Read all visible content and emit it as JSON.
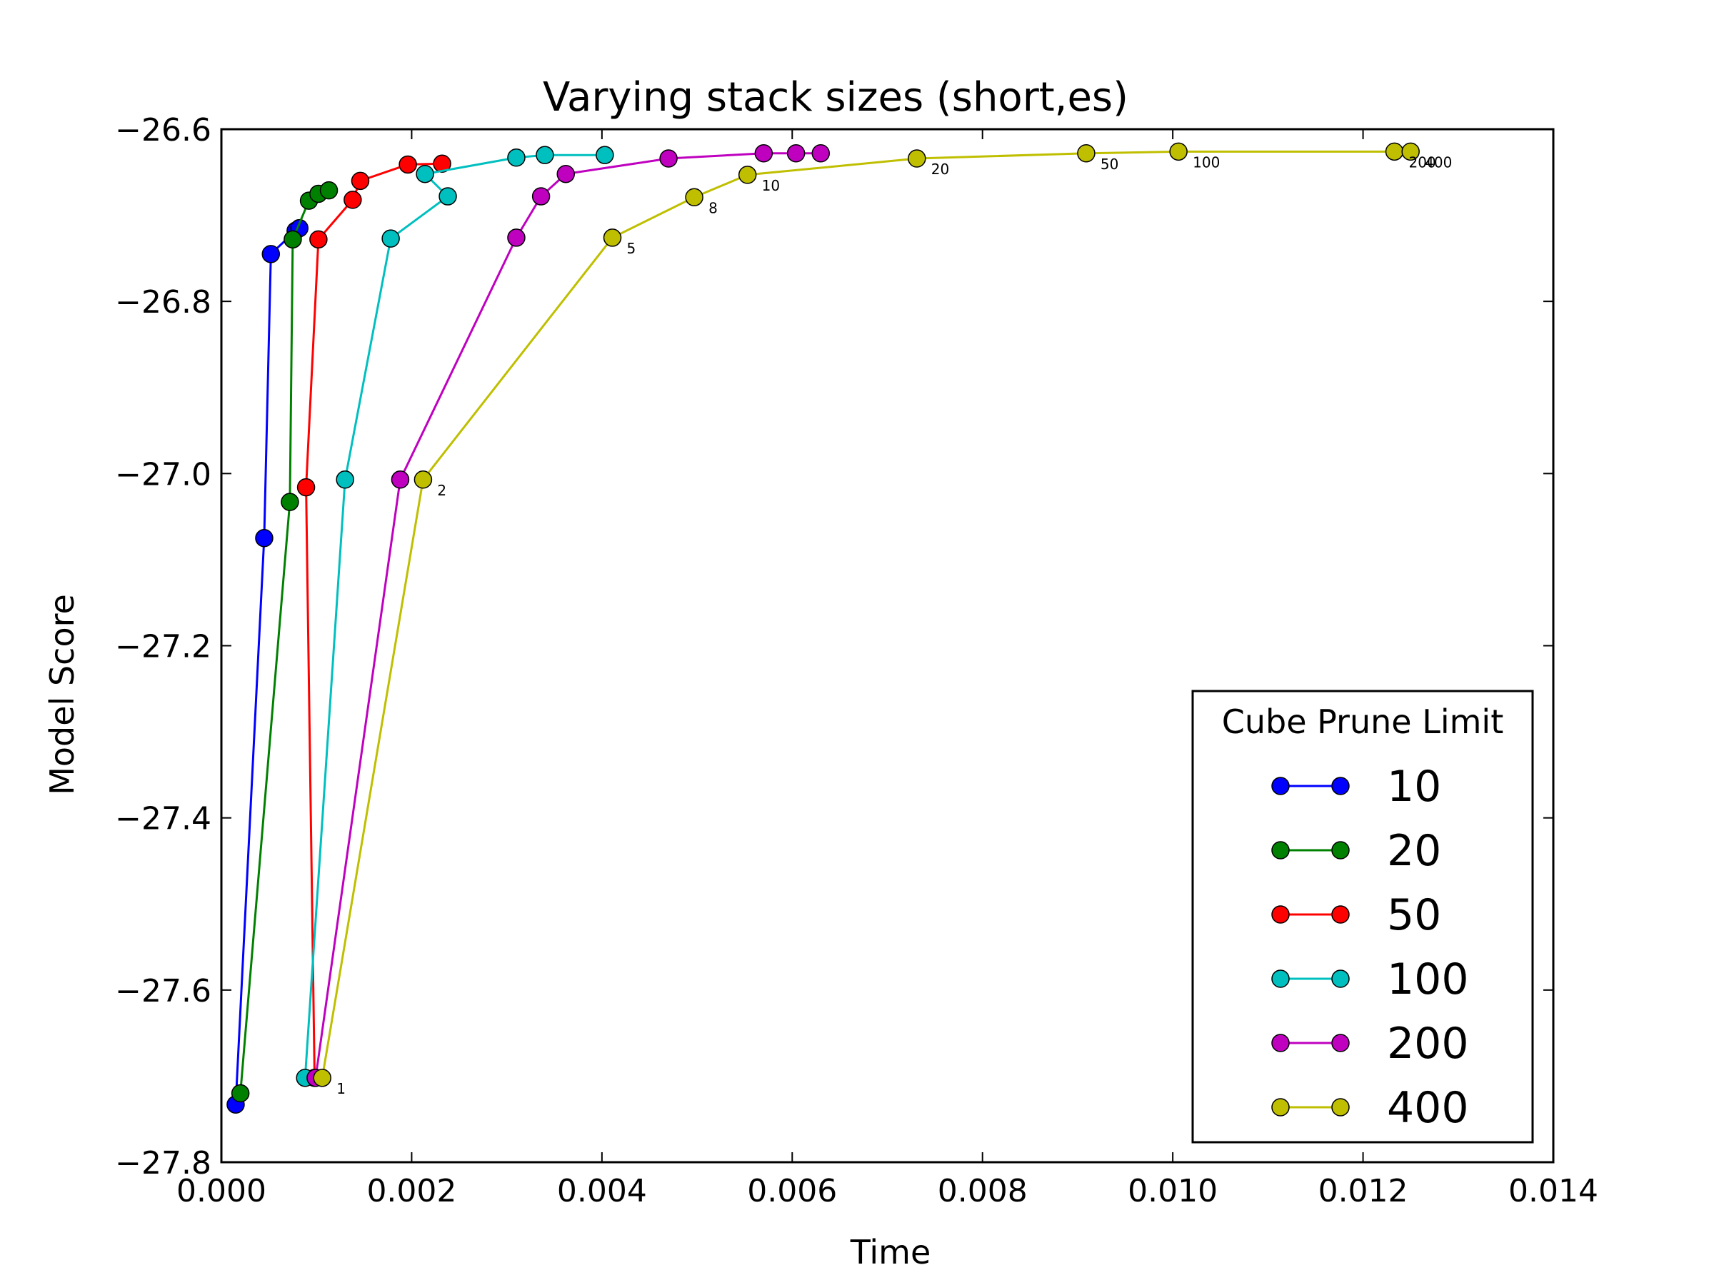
{
  "chart_data": {
    "type": "line",
    "title": "Varying stack sizes (short,es)",
    "xlabel": "Time",
    "ylabel": "Model Score",
    "xlim": [
      0.0,
      0.014
    ],
    "ylim": [
      -27.8,
      -26.6
    ],
    "x_ticks": [
      "0.000",
      "0.002",
      "0.004",
      "0.006",
      "0.008",
      "0.010",
      "0.012",
      "0.014"
    ],
    "y_ticks": [
      "−26.6",
      "−26.8",
      "−27.0",
      "−27.2",
      "−27.4",
      "−27.6",
      "−27.8"
    ],
    "grid": false,
    "legend": {
      "title": "Cube Prune Limit",
      "placement": "lower-right"
    },
    "series": [
      {
        "name": "10",
        "color": "#0000ff",
        "x": [
          0.00015,
          0.00045,
          0.00052,
          0.00078,
          0.00082
        ],
        "y": [
          -27.733,
          -27.075,
          -26.745,
          -26.718,
          -26.715
        ]
      },
      {
        "name": "20",
        "color": "#008000",
        "x": [
          0.0002,
          0.00072,
          0.00075,
          0.00092,
          0.00102,
          0.00113
        ],
        "y": [
          -27.72,
          -27.033,
          -26.728,
          -26.683,
          -26.675,
          -26.671
        ]
      },
      {
        "name": "50",
        "color": "#ff0000",
        "x": [
          0.00098,
          0.00089,
          0.00102,
          0.00138,
          0.00146,
          0.00196,
          0.00232
        ],
        "y": [
          -27.702,
          -27.016,
          -26.728,
          -26.682,
          -26.66,
          -26.641,
          -26.64
        ]
      },
      {
        "name": "100",
        "color": "#00bfbf",
        "x": [
          0.00088,
          0.0013,
          0.00178,
          0.00238,
          0.00214,
          0.0031,
          0.0034,
          0.00403
        ],
        "y": [
          -27.702,
          -27.007,
          -26.727,
          -26.678,
          -26.652,
          -26.633,
          -26.63,
          -26.63
        ]
      },
      {
        "name": "200",
        "color": "#bf00bf",
        "x": [
          0.00099,
          0.00188,
          0.0031,
          0.00336,
          0.00362,
          0.0047,
          0.0057,
          0.00604,
          0.0063
        ],
        "y": [
          -27.702,
          -27.007,
          -26.726,
          -26.678,
          -26.652,
          -26.634,
          -26.628,
          -26.628,
          -26.628
        ]
      },
      {
        "name": "400",
        "color": "#bfbf00",
        "x": [
          0.00106,
          0.00212,
          0.00411,
          0.00497,
          0.00553,
          0.00731,
          0.00909,
          0.01006,
          0.01233,
          0.0125
        ],
        "y": [
          -27.702,
          -27.007,
          -26.726,
          -26.679,
          -26.653,
          -26.634,
          -26.628,
          -26.626,
          -26.626,
          -26.626
        ],
        "point_labels": [
          "1",
          "2",
          "5",
          "8",
          "10",
          "20",
          "50",
          "100",
          "200",
          "400"
        ]
      }
    ]
  }
}
